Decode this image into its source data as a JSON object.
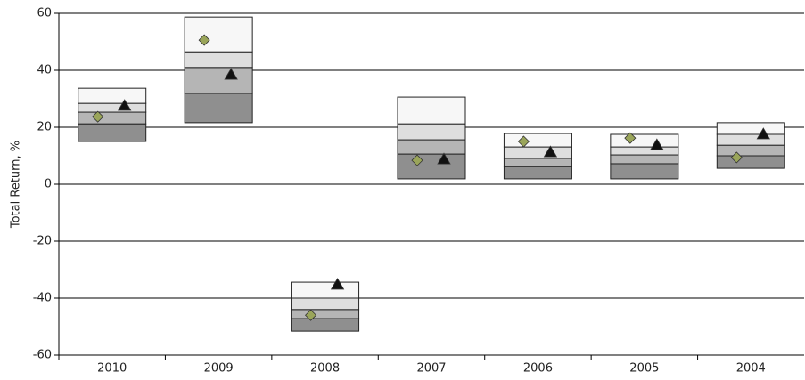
{
  "chart_data": {
    "type": "box",
    "ylabel": "Total Return, %",
    "categories": [
      "2010",
      "2009",
      "2008",
      "2007",
      "2006",
      "2005",
      "2004"
    ],
    "boxes": [
      [
        15,
        21.2,
        25.3,
        28.4,
        33.7
      ],
      [
        21.6,
        31.9,
        41,
        46.5,
        58.7
      ],
      [
        -51.6,
        -47.2,
        -44,
        -40,
        -34.4
      ],
      [
        1.9,
        10.6,
        15.6,
        21.2,
        30.6
      ],
      [
        1.9,
        6.2,
        9.1,
        13.1,
        17.8
      ],
      [
        1.9,
        7.2,
        10.3,
        13.1,
        17.5
      ],
      [
        5.6,
        10,
        13.7,
        17.5,
        21.6
      ]
    ],
    "box_colors": [
      "#8f8f8f",
      "#b5b5b5",
      "#dedede",
      "#f7f7f7"
    ],
    "markers": [
      {
        "shape": "diamond",
        "color": "#9aa55a",
        "values": [
          23.7,
          50.6,
          -46,
          8.4,
          15,
          16.2,
          9.4
        ]
      },
      {
        "shape": "triangle",
        "color": "#111111",
        "values": [
          27.5,
          38.4,
          -35.3,
          8.7,
          11.2,
          13.7,
          17.5
        ]
      }
    ],
    "ylim": [
      -60,
      60
    ],
    "yticks": [
      -60,
      -40,
      -20,
      0,
      20,
      40,
      60
    ],
    "grid": true
  }
}
